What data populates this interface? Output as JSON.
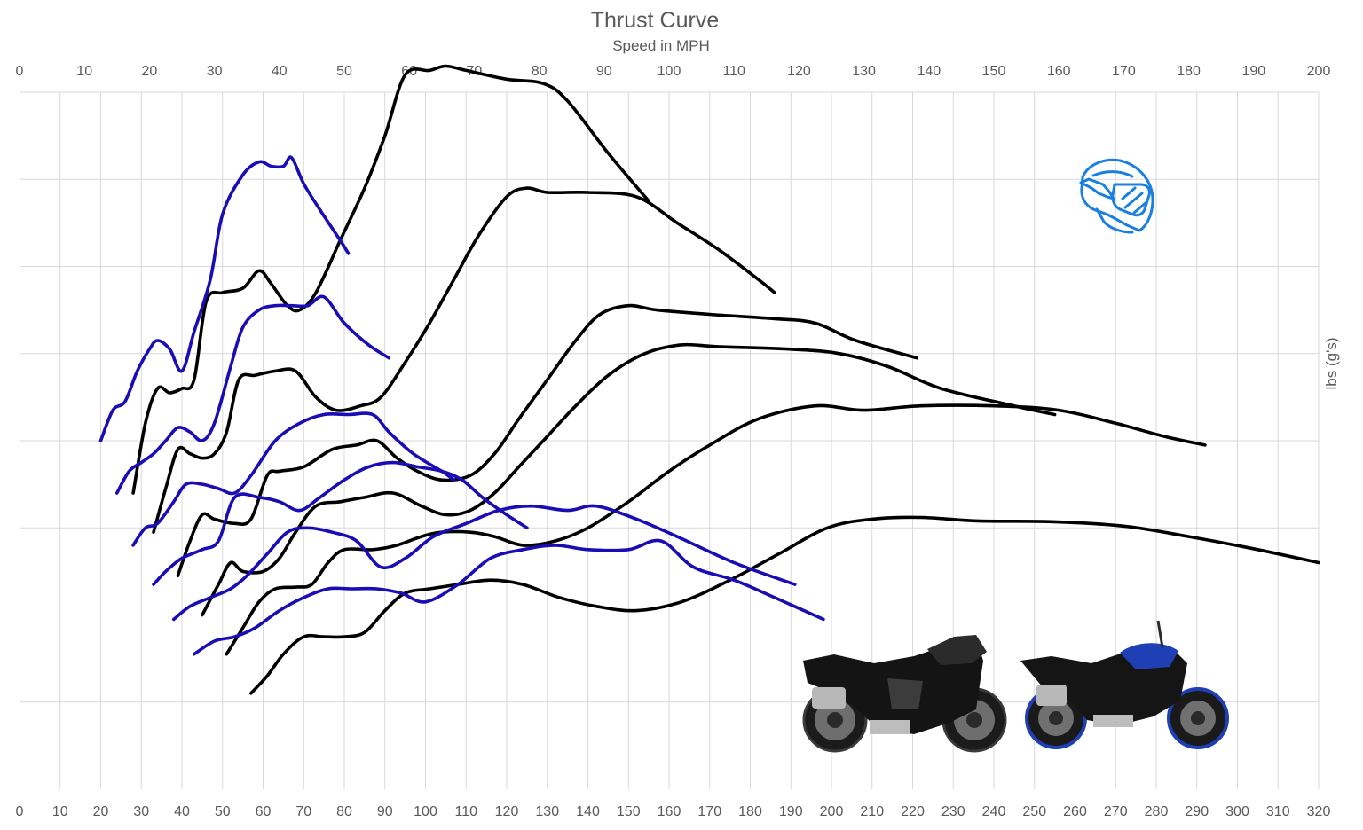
{
  "chart_data": {
    "type": "line",
    "title": "Thrust Curve",
    "subtitle": "Speed in MPH",
    "ylabel": "lbs (g's)",
    "x_top": {
      "ticks": [
        0,
        10,
        20,
        30,
        40,
        50,
        60,
        70,
        80,
        90,
        100,
        110,
        120,
        130,
        140,
        150,
        160,
        170,
        180,
        190,
        200
      ],
      "range": [
        0,
        200
      ]
    },
    "x_bottom": {
      "ticks": [
        0,
        10,
        20,
        30,
        40,
        50,
        60,
        70,
        80,
        90,
        100,
        110,
        120,
        130,
        140,
        150,
        160,
        170,
        180,
        190,
        200,
        210,
        220,
        230,
        240,
        250,
        260,
        270,
        280,
        290,
        300,
        310,
        320
      ],
      "range": [
        0,
        320
      ]
    },
    "y": {
      "range": [
        0,
        8
      ],
      "grid_lines": [
        1,
        2,
        3,
        4,
        5,
        6,
        7,
        8
      ],
      "tick_labels": false
    },
    "grid": true,
    "colors": {
      "black_series": "#000000",
      "blue_series": "#1a0db5",
      "helmet": "#1a7fe0",
      "text": "#595959",
      "grid": "#d9d9d9"
    },
    "icons": {
      "helmet": "helmet-icon",
      "bike_black": "sportbike-black-image",
      "bike_blue": "naked-bike-blue-image"
    },
    "series": [
      {
        "group": "black",
        "gear": 1,
        "points": [
          [
            28,
            3.4
          ],
          [
            31,
            4.2
          ],
          [
            34,
            4.6
          ],
          [
            37,
            4.55
          ],
          [
            40,
            4.6
          ],
          [
            43,
            4.7
          ],
          [
            46,
            5.6
          ],
          [
            50,
            5.7
          ],
          [
            55,
            5.75
          ],
          [
            59,
            5.95
          ],
          [
            62,
            5.8
          ],
          [
            66,
            5.55
          ],
          [
            69,
            5.5
          ],
          [
            73,
            5.7
          ],
          [
            79,
            6.3
          ],
          [
            85,
            6.9
          ],
          [
            90,
            7.5
          ],
          [
            95,
            8.2
          ],
          [
            101,
            8.25
          ],
          [
            105,
            8.3
          ],
          [
            110,
            8.25
          ],
          [
            120,
            8.15
          ],
          [
            129,
            8.1
          ],
          [
            135,
            7.9
          ],
          [
            145,
            7.3
          ],
          [
            155,
            6.75
          ]
        ]
      },
      {
        "group": "black",
        "gear": 2,
        "points": [
          [
            33,
            2.95
          ],
          [
            36,
            3.45
          ],
          [
            39,
            3.9
          ],
          [
            42,
            3.85
          ],
          [
            45,
            3.8
          ],
          [
            48,
            3.85
          ],
          [
            51,
            4.1
          ],
          [
            54,
            4.7
          ],
          [
            58,
            4.75
          ],
          [
            63,
            4.8
          ],
          [
            68,
            4.8
          ],
          [
            73,
            4.5
          ],
          [
            78,
            4.35
          ],
          [
            84,
            4.4
          ],
          [
            89,
            4.5
          ],
          [
            95,
            4.9
          ],
          [
            101,
            5.35
          ],
          [
            107,
            5.85
          ],
          [
            113,
            6.35
          ],
          [
            120,
            6.8
          ],
          [
            125,
            6.9
          ],
          [
            130,
            6.85
          ],
          [
            140,
            6.85
          ],
          [
            152,
            6.8
          ],
          [
            162,
            6.5
          ],
          [
            172,
            6.2
          ],
          [
            182,
            5.85
          ],
          [
            186,
            5.7
          ]
        ]
      },
      {
        "group": "black",
        "gear": 3,
        "points": [
          [
            39,
            2.45
          ],
          [
            42,
            2.85
          ],
          [
            45,
            3.15
          ],
          [
            48,
            3.1
          ],
          [
            53,
            3.05
          ],
          [
            57,
            3.1
          ],
          [
            61,
            3.6
          ],
          [
            64,
            3.65
          ],
          [
            70,
            3.7
          ],
          [
            77,
            3.9
          ],
          [
            83,
            3.95
          ],
          [
            88,
            4.0
          ],
          [
            93,
            3.8
          ],
          [
            98,
            3.65
          ],
          [
            104,
            3.55
          ],
          [
            111,
            3.6
          ],
          [
            117,
            3.85
          ],
          [
            123,
            4.25
          ],
          [
            130,
            4.7
          ],
          [
            137,
            5.15
          ],
          [
            143,
            5.45
          ],
          [
            150,
            5.55
          ],
          [
            157,
            5.5
          ],
          [
            170,
            5.45
          ],
          [
            186,
            5.4
          ],
          [
            196,
            5.35
          ],
          [
            206,
            5.15
          ],
          [
            221,
            4.95
          ]
        ]
      },
      {
        "group": "black",
        "gear": 4,
        "points": [
          [
            45,
            2.0
          ],
          [
            49,
            2.35
          ],
          [
            52,
            2.6
          ],
          [
            55,
            2.5
          ],
          [
            60,
            2.5
          ],
          [
            64,
            2.65
          ],
          [
            68,
            2.95
          ],
          [
            73,
            3.25
          ],
          [
            79,
            3.3
          ],
          [
            85,
            3.35
          ],
          [
            92,
            3.4
          ],
          [
            99,
            3.25
          ],
          [
            105,
            3.15
          ],
          [
            111,
            3.2
          ],
          [
            117,
            3.4
          ],
          [
            123,
            3.7
          ],
          [
            130,
            4.05
          ],
          [
            137,
            4.4
          ],
          [
            145,
            4.75
          ],
          [
            154,
            5.0
          ],
          [
            163,
            5.1
          ],
          [
            172,
            5.08
          ],
          [
            190,
            5.05
          ],
          [
            202,
            5.0
          ],
          [
            214,
            4.85
          ],
          [
            227,
            4.6
          ],
          [
            245,
            4.4
          ],
          [
            255,
            4.3
          ]
        ]
      },
      {
        "group": "black",
        "gear": 5,
        "points": [
          [
            51,
            1.55
          ],
          [
            55,
            1.85
          ],
          [
            59,
            2.15
          ],
          [
            63,
            2.3
          ],
          [
            68,
            2.32
          ],
          [
            72,
            2.35
          ],
          [
            76,
            2.6
          ],
          [
            80,
            2.75
          ],
          [
            87,
            2.75
          ],
          [
            93,
            2.8
          ],
          [
            99,
            2.9
          ],
          [
            104,
            2.95
          ],
          [
            111,
            2.95
          ],
          [
            117,
            2.9
          ],
          [
            124,
            2.8
          ],
          [
            132,
            2.85
          ],
          [
            140,
            3.0
          ],
          [
            150,
            3.3
          ],
          [
            160,
            3.65
          ],
          [
            170,
            3.95
          ],
          [
            182,
            4.25
          ],
          [
            196,
            4.4
          ],
          [
            208,
            4.35
          ],
          [
            222,
            4.4
          ],
          [
            240,
            4.4
          ],
          [
            256,
            4.35
          ],
          [
            270,
            4.2
          ],
          [
            282,
            4.05
          ],
          [
            292,
            3.95
          ]
        ]
      },
      {
        "group": "black",
        "gear": 6,
        "points": [
          [
            57,
            1.1
          ],
          [
            61,
            1.3
          ],
          [
            65,
            1.55
          ],
          [
            70,
            1.75
          ],
          [
            75,
            1.75
          ],
          [
            80,
            1.75
          ],
          [
            85,
            1.8
          ],
          [
            90,
            2.05
          ],
          [
            95,
            2.25
          ],
          [
            101,
            2.3
          ],
          [
            108,
            2.35
          ],
          [
            116,
            2.4
          ],
          [
            124,
            2.35
          ],
          [
            133,
            2.2
          ],
          [
            142,
            2.1
          ],
          [
            152,
            2.05
          ],
          [
            163,
            2.15
          ],
          [
            175,
            2.4
          ],
          [
            187,
            2.7
          ],
          [
            199,
            3.0
          ],
          [
            210,
            3.1
          ],
          [
            222,
            3.12
          ],
          [
            236,
            3.08
          ],
          [
            255,
            3.07
          ],
          [
            272,
            3.02
          ],
          [
            288,
            2.9
          ],
          [
            305,
            2.75
          ],
          [
            320,
            2.6
          ]
        ]
      },
      {
        "group": "blue",
        "gear": 1,
        "points": [
          [
            20,
            4.0
          ],
          [
            23,
            4.35
          ],
          [
            26,
            4.45
          ],
          [
            29,
            4.8
          ],
          [
            32,
            5.05
          ],
          [
            34,
            5.15
          ],
          [
            37,
            5.05
          ],
          [
            40,
            4.8
          ],
          [
            43,
            5.25
          ],
          [
            47,
            5.85
          ],
          [
            50,
            6.6
          ],
          [
            55,
            7.05
          ],
          [
            59,
            7.2
          ],
          [
            62,
            7.15
          ],
          [
            65,
            7.15
          ],
          [
            67,
            7.25
          ],
          [
            70,
            6.95
          ],
          [
            74,
            6.65
          ],
          [
            79,
            6.3
          ],
          [
            81,
            6.15
          ]
        ]
      },
      {
        "group": "blue",
        "gear": 2,
        "points": [
          [
            24,
            3.4
          ],
          [
            27,
            3.65
          ],
          [
            30,
            3.75
          ],
          [
            33,
            3.85
          ],
          [
            36,
            4.0
          ],
          [
            39,
            4.15
          ],
          [
            42,
            4.1
          ],
          [
            45,
            4.0
          ],
          [
            48,
            4.2
          ],
          [
            52,
            4.85
          ],
          [
            55,
            5.3
          ],
          [
            59,
            5.5
          ],
          [
            63,
            5.55
          ],
          [
            67,
            5.55
          ],
          [
            71,
            5.55
          ],
          [
            75,
            5.65
          ],
          [
            80,
            5.35
          ],
          [
            86,
            5.1
          ],
          [
            91,
            4.95
          ]
        ]
      },
      {
        "group": "blue",
        "gear": 3,
        "points": [
          [
            28,
            2.8
          ],
          [
            31,
            3.0
          ],
          [
            34,
            3.05
          ],
          [
            38,
            3.3
          ],
          [
            41,
            3.5
          ],
          [
            45,
            3.5
          ],
          [
            49,
            3.45
          ],
          [
            53,
            3.4
          ],
          [
            57,
            3.6
          ],
          [
            63,
            4.0
          ],
          [
            69,
            4.2
          ],
          [
            75,
            4.3
          ],
          [
            81,
            4.3
          ],
          [
            87,
            4.3
          ],
          [
            91,
            4.1
          ],
          [
            97,
            3.85
          ],
          [
            104,
            3.65
          ],
          [
            107,
            3.55
          ]
        ]
      },
      {
        "group": "blue",
        "gear": 4,
        "points": [
          [
            33,
            2.35
          ],
          [
            36,
            2.5
          ],
          [
            40,
            2.65
          ],
          [
            45,
            2.75
          ],
          [
            49,
            2.85
          ],
          [
            53,
            3.35
          ],
          [
            59,
            3.35
          ],
          [
            64,
            3.3
          ],
          [
            69,
            3.2
          ],
          [
            74,
            3.35
          ],
          [
            80,
            3.55
          ],
          [
            86,
            3.7
          ],
          [
            92,
            3.75
          ],
          [
            98,
            3.7
          ],
          [
            104,
            3.65
          ],
          [
            109,
            3.55
          ],
          [
            114,
            3.35
          ],
          [
            120,
            3.15
          ],
          [
            125,
            3.0
          ]
        ]
      },
      {
        "group": "blue",
        "gear": 5,
        "points": [
          [
            38,
            1.95
          ],
          [
            42,
            2.1
          ],
          [
            47,
            2.2
          ],
          [
            52,
            2.3
          ],
          [
            56,
            2.45
          ],
          [
            61,
            2.7
          ],
          [
            66,
            2.95
          ],
          [
            71,
            3.0
          ],
          [
            77,
            2.95
          ],
          [
            83,
            2.85
          ],
          [
            89,
            2.55
          ],
          [
            95,
            2.65
          ],
          [
            102,
            2.9
          ],
          [
            110,
            3.05
          ],
          [
            118,
            3.2
          ],
          [
            126,
            3.25
          ],
          [
            135,
            3.2
          ],
          [
            142,
            3.25
          ],
          [
            152,
            3.1
          ],
          [
            162,
            2.9
          ],
          [
            176,
            2.6
          ],
          [
            191,
            2.35
          ]
        ]
      },
      {
        "group": "blue",
        "gear": 6,
        "points": [
          [
            43,
            1.55
          ],
          [
            48,
            1.7
          ],
          [
            53,
            1.75
          ],
          [
            58,
            1.85
          ],
          [
            64,
            2.05
          ],
          [
            70,
            2.2
          ],
          [
            76,
            2.3
          ],
          [
            82,
            2.3
          ],
          [
            88,
            2.3
          ],
          [
            94,
            2.25
          ],
          [
            100,
            2.15
          ],
          [
            108,
            2.35
          ],
          [
            116,
            2.65
          ],
          [
            124,
            2.75
          ],
          [
            132,
            2.8
          ],
          [
            140,
            2.75
          ],
          [
            150,
            2.75
          ],
          [
            158,
            2.85
          ],
          [
            166,
            2.55
          ],
          [
            176,
            2.4
          ],
          [
            186,
            2.2
          ],
          [
            198,
            1.95
          ]
        ]
      }
    ]
  }
}
